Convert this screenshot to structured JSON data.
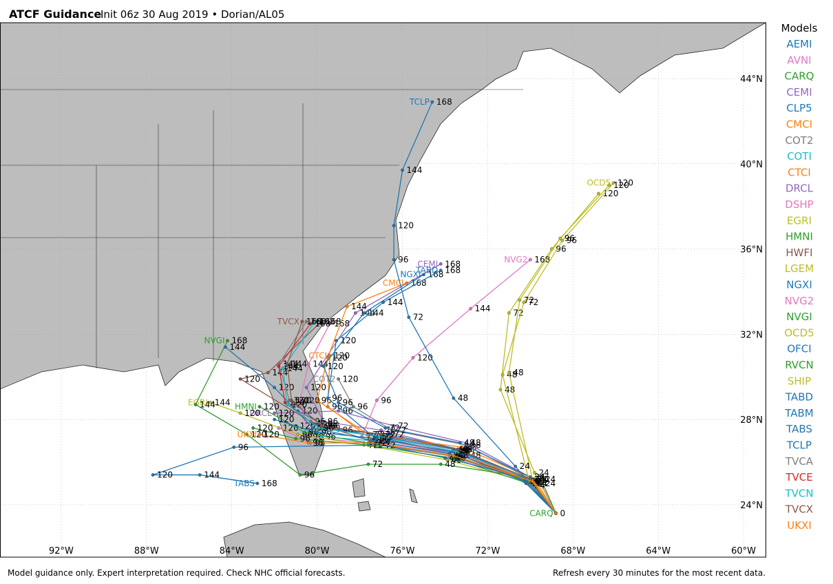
{
  "header": {
    "title": "ATCF Guidance",
    "subtitle": "Init 06z 30 Aug 2019 • Dorian/AL05"
  },
  "footer": {
    "left": "Model guidance only. Expert interpretation required. Check NHC official forecasts.",
    "right": "Refresh every 30 minutes for the most recent data."
  },
  "chart_data": {
    "type": "line",
    "legend_title": "Models",
    "legend": "right",
    "grid": true,
    "xlim": [
      -94.87,
      -58.97
    ],
    "ylim": [
      21.54,
      46.62
    ],
    "xticks": [
      {
        "value": -92,
        "label": "92°W"
      },
      {
        "value": -88,
        "label": "88°W"
      },
      {
        "value": -84,
        "label": "84°W"
      },
      {
        "value": -80,
        "label": "80°W"
      },
      {
        "value": -76,
        "label": "76°W"
      },
      {
        "value": -72,
        "label": "72°W"
      },
      {
        "value": -68,
        "label": "68°W"
      },
      {
        "value": -64,
        "label": "64°W"
      },
      {
        "value": -60,
        "label": "60°W"
      }
    ],
    "yticks": [
      {
        "value": 24,
        "label": "24°N"
      },
      {
        "value": 28,
        "label": "28°N"
      },
      {
        "value": 32,
        "label": "32°N"
      },
      {
        "value": 36,
        "label": "36°N"
      },
      {
        "value": 40,
        "label": "40°N"
      },
      {
        "value": 44,
        "label": "44°N"
      }
    ],
    "series": [
      {
        "name": "AEMI",
        "color": "#1f77b4",
        "x": [
          -68.8,
          -70.1,
          -73.5,
          -77.3,
          -79.6,
          -80.9
        ],
        "values": [
          23.6,
          25.1,
          26.4,
          27.2,
          27.7,
          28.4
        ],
        "hours": [
          null,
          24,
          48,
          72,
          96,
          120
        ]
      },
      {
        "name": "AVNI",
        "color": "#e377c2",
        "x": [
          -68.8,
          -69.9,
          -73.8,
          -77.8,
          -80.4,
          -80.8,
          -80.4,
          -79.4
        ],
        "values": [
          23.6,
          25.0,
          26.3,
          26.9,
          27.2,
          28.9,
          30.6,
          32.5
        ],
        "hours": [
          null,
          24,
          48,
          72,
          96,
          120,
          144,
          168
        ]
      },
      {
        "name": "CARQ",
        "color": "#2ca02c",
        "x": [
          -68.8
        ],
        "values": [
          23.6
        ],
        "hours": [
          0
        ],
        "end_label": true
      },
      {
        "name": "CEMI",
        "color": "#9467bd",
        "x": [
          -68.8,
          -70.0,
          -73.4,
          -77.0,
          -79.7,
          -80.5,
          -78.2,
          -74.2
        ],
        "values": [
          23.6,
          25.2,
          26.6,
          27.5,
          27.9,
          29.5,
          33.0,
          35.3
        ],
        "hours": [
          null,
          24,
          48,
          72,
          96,
          120,
          144,
          168
        ],
        "end_label": true
      },
      {
        "name": "CLP5",
        "color": "#1f77b4",
        "x": [
          -68.8,
          -70.2,
          -73.3,
          -76.6,
          -79.0,
          -80.2
        ],
        "values": [
          23.6,
          25.0,
          26.6,
          27.3,
          27.5,
          27.8
        ],
        "hours": [
          null,
          24,
          48,
          72,
          96,
          120
        ]
      },
      {
        "name": "CMCI",
        "color": "#ff7f0e",
        "x": [
          -68.8,
          -69.8,
          -73.2,
          -77.6,
          -80.0,
          -79.5,
          -78.6,
          -75.8
        ],
        "values": [
          23.6,
          25.2,
          26.7,
          27.3,
          28.9,
          30.9,
          33.3,
          34.4
        ],
        "hours": [
          null,
          24,
          48,
          72,
          96,
          120,
          144,
          168
        ],
        "end_label": true
      },
      {
        "name": "COT2",
        "color": "#7f7f7f",
        "x": [
          -68.8,
          -70.0,
          -73.0,
          -76.5,
          -78.3,
          -79.0
        ],
        "values": [
          23.6,
          25.2,
          26.8,
          27.5,
          28.6,
          29.9
        ],
        "hours": [
          null,
          24,
          48,
          72,
          96,
          120
        ],
        "end_label": true
      },
      {
        "name": "COTI",
        "color": "#17becf",
        "x": [
          -68.8,
          -70.2,
          -73.8,
          -77.4,
          -79.8,
          -81.0
        ],
        "values": [
          23.6,
          25.1,
          26.4,
          27.0,
          27.2,
          27.7
        ],
        "hours": [
          null,
          24,
          48,
          72,
          96,
          120
        ]
      },
      {
        "name": "CTCI",
        "color": "#ff7f0e",
        "x": [
          -68.8,
          -69.9,
          -73.6,
          -77.5,
          -79.5,
          -79.4
        ],
        "values": [
          23.6,
          25.1,
          26.5,
          27.1,
          28.6,
          31.0
        ],
        "hours": [
          null,
          24,
          48,
          72,
          96,
          120
        ],
        "end_label": true
      },
      {
        "name": "DRCL",
        "color": "#9467bd",
        "x": [
          -68.8,
          -70.0,
          -73.0,
          -76.4,
          -79.0,
          -82.0
        ],
        "values": [
          23.6,
          25.3,
          26.9,
          27.7,
          28.4,
          28.3
        ],
        "hours": [
          null,
          24,
          48,
          72,
          96,
          120
        ],
        "end_label": true
      },
      {
        "name": "DSHP",
        "color": "#e377c2",
        "x": [
          -68.8,
          -70.1,
          -73.5,
          -77.2,
          -80.3,
          -81.8
        ],
        "values": [
          23.6,
          25.1,
          26.3,
          26.9,
          26.9,
          27.6
        ],
        "hours": [
          null,
          24,
          48,
          72,
          96,
          120
        ]
      },
      {
        "name": "EGRI",
        "color": "#bcbd22",
        "x": [
          -68.8,
          -69.9,
          -73.9,
          -77.8,
          -80.9,
          -83.6,
          -85.0
        ],
        "values": [
          23.6,
          25.0,
          26.1,
          26.8,
          27.3,
          28.3,
          28.8
        ],
        "hours": [
          null,
          24,
          48,
          72,
          96,
          120,
          144
        ],
        "end_label": true
      },
      {
        "name": "HMNI",
        "color": "#2ca02c",
        "x": [
          -68.8,
          -70.0,
          -73.7,
          -77.6,
          -80.6,
          -82.7
        ],
        "values": [
          23.6,
          25.1,
          26.3,
          26.9,
          27.4,
          28.6
        ],
        "hours": [
          null,
          24,
          48,
          72,
          96,
          120
        ],
        "end_label": true
      },
      {
        "name": "HWFI",
        "color": "#8c564b",
        "x": [
          -68.8,
          -70.0,
          -73.5,
          -77.5,
          -80.3,
          -83.6,
          -82.3,
          -79.8
        ],
        "values": [
          23.6,
          25.1,
          26.4,
          27.0,
          27.9,
          29.9,
          30.2,
          32.6
        ],
        "hours": [
          null,
          24,
          48,
          72,
          96,
          120,
          144,
          168
        ]
      },
      {
        "name": "LGEM",
        "color": "#bcbd22",
        "x": [
          -68.8,
          -69.8,
          -71.4,
          -71.0,
          -69.0,
          -66.8
        ],
        "values": [
          23.6,
          25.5,
          29.4,
          33.0,
          36.0,
          38.6
        ],
        "hours": [
          null,
          24,
          48,
          72,
          96,
          120
        ]
      },
      {
        "name": "NGXI",
        "color": "#1f77b4",
        "x": [
          -68.8,
          -70.0,
          -73.3,
          -76.8,
          -79.0,
          -79.7,
          -77.8,
          -75.0
        ],
        "values": [
          23.6,
          25.3,
          26.9,
          27.6,
          28.8,
          30.5,
          33.0,
          34.8
        ],
        "hours": [
          null,
          24,
          48,
          72,
          96,
          120,
          144,
          168
        ],
        "end_label": true
      },
      {
        "name": "NVG2",
        "color": "#e377c2",
        "x": [
          -68.8,
          -69.5,
          -73.0,
          -77.9,
          -77.2,
          -75.5,
          -72.8,
          -70.0
        ],
        "values": [
          23.6,
          25.0,
          26.3,
          27.2,
          28.9,
          30.9,
          33.2,
          35.5
        ],
        "hours": [
          null,
          24,
          48,
          72,
          96,
          120,
          144,
          168
        ],
        "end_label": true
      },
      {
        "name": "NVGI",
        "color": "#2ca02c",
        "x": [
          -68.8,
          -69.5,
          -74.2,
          -77.6,
          -80.8,
          -83.3,
          -85.7,
          -84.2
        ],
        "values": [
          23.6,
          25.2,
          25.9,
          25.9,
          25.4,
          27.3,
          28.7,
          31.7
        ],
        "hours": [
          null,
          24,
          48,
          72,
          96,
          120,
          144,
          168
        ],
        "end_label": true
      },
      {
        "name": "OCD5",
        "color": "#bcbd22",
        "x": [
          -68.8,
          -70.0,
          -71.3,
          -70.3,
          -68.5,
          -66.1
        ],
        "values": [
          23.6,
          24.9,
          30.1,
          33.5,
          36.4,
          39.1
        ],
        "hours": [
          null,
          24,
          48,
          72,
          96,
          120
        ],
        "end_label": true
      },
      {
        "name": "OFCI",
        "color": "#1f77b4",
        "x": [
          -68.8,
          -70.3,
          -73.7,
          -77.2,
          -80.0,
          -82.0
        ],
        "values": [
          23.6,
          25.1,
          26.5,
          27.1,
          27.4,
          28.0
        ],
        "hours": [
          null,
          24,
          48,
          72,
          96,
          120
        ]
      },
      {
        "name": "RVCN",
        "color": "#2ca02c",
        "x": [
          -68.8,
          -70.1,
          -73.7,
          -77.6,
          -81.0,
          -83.0
        ],
        "values": [
          23.6,
          25.0,
          26.2,
          26.8,
          27.1,
          27.6
        ],
        "hours": [
          null,
          24,
          48,
          72,
          96,
          120
        ]
      },
      {
        "name": "SHIP",
        "color": "#bcbd22",
        "x": [
          -68.8,
          -69.9,
          -71.0,
          -70.5,
          -68.6,
          -66.3
        ],
        "values": [
          23.6,
          25.2,
          30.2,
          33.6,
          36.5,
          39.0
        ],
        "hours": [
          null,
          24,
          48,
          72,
          96,
          120
        ]
      },
      {
        "name": "TABD",
        "color": "#1f77b4",
        "x": [
          -68.8,
          -70.0,
          -73.6,
          -77.5,
          -79.5,
          -79.1,
          -76.9,
          -74.2
        ],
        "values": [
          23.6,
          25.2,
          26.6,
          27.3,
          29.0,
          31.7,
          33.5,
          35.0
        ],
        "hours": [
          null,
          24,
          48,
          72,
          96,
          120,
          144,
          168
        ],
        "end_label": true
      },
      {
        "name": "TABM",
        "color": "#1f77b4",
        "x": [
          -68.8,
          -70.2,
          -73.8,
          -77.3,
          -80.2,
          -82.0,
          -84.3
        ],
        "values": [
          23.6,
          25.1,
          26.4,
          27.0,
          27.6,
          29.5,
          31.4
        ],
        "hours": [
          null,
          24,
          48,
          72,
          96,
          120,
          144
        ]
      },
      {
        "name": "TABS",
        "color": "#1f77b4",
        "x": [
          -68.8,
          -70.0,
          -74.0,
          -77.0,
          -83.9,
          -87.7,
          -85.5,
          -82.8
        ],
        "values": [
          23.6,
          25.2,
          26.2,
          26.8,
          26.7,
          25.4,
          25.4,
          25.0
        ],
        "hours": [
          null,
          24,
          48,
          72,
          96,
          120,
          144,
          168
        ],
        "end_label": true
      },
      {
        "name": "TCLP",
        "color": "#1f77b4",
        "x": [
          -68.8,
          -70.7,
          -73.6,
          -75.7,
          -76.4,
          -76.4,
          -76.0,
          -74.6
        ],
        "values": [
          23.6,
          25.8,
          29.0,
          32.8,
          35.5,
          37.1,
          39.7,
          42.9
        ],
        "hours": [
          null,
          24,
          48,
          72,
          96,
          120,
          144,
          168
        ],
        "end_label": true
      },
      {
        "name": "TVCA",
        "color": "#7f7f7f",
        "x": [
          -68.8,
          -70.0,
          -73.4,
          -77.0,
          -79.7,
          -81.3,
          -81.8,
          -80.5
        ],
        "values": [
          23.6,
          25.2,
          26.6,
          27.3,
          27.7,
          28.9,
          30.6,
          32.6
        ],
        "hours": [
          null,
          24,
          48,
          72,
          96,
          120,
          144,
          168
        ]
      },
      {
        "name": "TVCE",
        "color": "#d62728",
        "x": [
          -68.8,
          -70.0,
          -73.5,
          -77.1,
          -79.9,
          -81.5,
          -81.8,
          -80.3
        ],
        "values": [
          23.6,
          25.2,
          26.5,
          27.2,
          27.6,
          28.8,
          30.5,
          32.5
        ],
        "hours": [
          null,
          24,
          48,
          72,
          96,
          120,
          144,
          168
        ]
      },
      {
        "name": "TVCN",
        "color": "#17becf",
        "x": [
          -68.8,
          -70.0,
          -73.5,
          -77.1,
          -79.9,
          -81.4,
          -81.6,
          -80.1
        ],
        "values": [
          23.6,
          25.2,
          26.5,
          27.2,
          27.6,
          28.7,
          30.4,
          32.6
        ],
        "hours": [
          null,
          24,
          48,
          72,
          96,
          120,
          144,
          168
        ]
      },
      {
        "name": "TVCX",
        "color": "#8c564b",
        "x": [
          -68.8,
          -70.0,
          -73.4,
          -77.0,
          -79.8,
          -81.2,
          -81.4,
          -80.7
        ],
        "values": [
          23.6,
          25.2,
          26.6,
          27.3,
          27.7,
          28.9,
          30.6,
          32.6
        ],
        "hours": [
          null,
          24,
          48,
          72,
          96,
          120,
          144,
          168
        ],
        "end_label": true
      },
      {
        "name": "UKXI",
        "color": "#ff7f0e",
        "x": [
          -68.8,
          -69.9,
          -73.6,
          -77.4,
          -80.4,
          -82.7
        ],
        "values": [
          23.6,
          25.1,
          26.3,
          26.9,
          26.9,
          27.3
        ],
        "hours": [
          null,
          24,
          48,
          72,
          96,
          120
        ],
        "end_label": true
      }
    ]
  }
}
